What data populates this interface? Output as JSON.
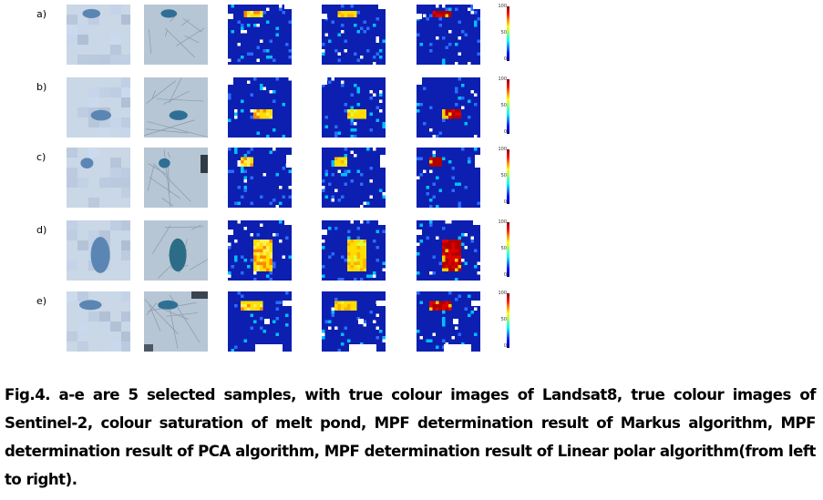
{
  "figure": {
    "rows": [
      {
        "label": "a)"
      },
      {
        "label": "b)"
      },
      {
        "label": "c)"
      },
      {
        "label": "d)"
      },
      {
        "label": "e)"
      }
    ],
    "colorbar": {
      "ticks": [
        "100",
        "50",
        "0"
      ]
    },
    "colors": {
      "ice_light": "#c9d7e6",
      "pond": "#5b86b4",
      "map_background": "#0c1fb0",
      "map_hot": "#ffdd00",
      "map_red": "#b00000"
    }
  },
  "caption": "Fig.4. a-e are 5 selected samples, with true colour images of Landsat8, true colour images of Sentinel-2, colour saturation of melt pond, MPF determination result of Markus algorithm, MPF determination result of PCA algorithm, MPF determination result of Linear polar algorithm(from left to right)."
}
